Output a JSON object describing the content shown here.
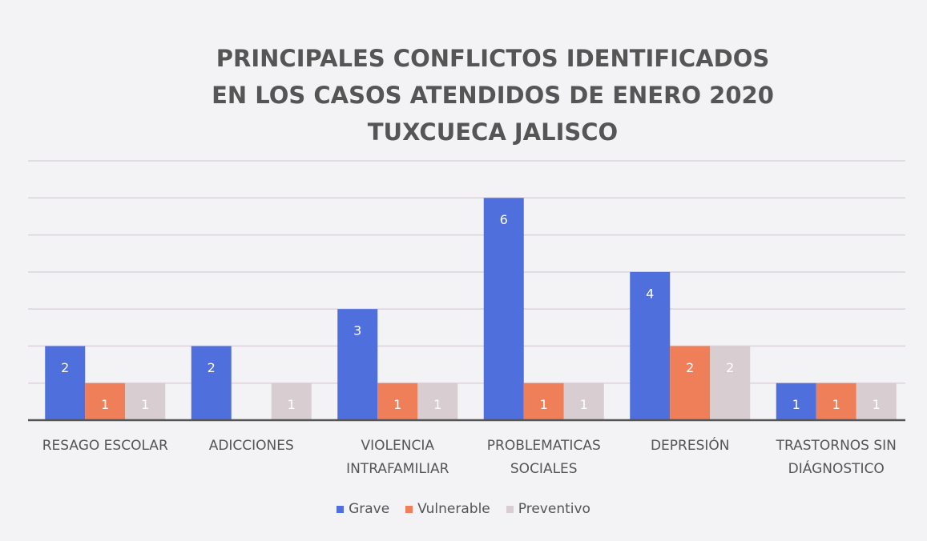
{
  "chart_data": {
    "type": "bar",
    "title": "PRINCIPALES CONFLICTOS IDENTIFICADOS\nEN LOS CASOS ATENDIDOS DE ENERO 2020\nTUXCUECA JALISCO",
    "categories": [
      "RESAGO ESCOLAR",
      "ADICCIONES",
      "VIOLENCIA\nINTRAFAMILIAR",
      "PROBLEMATICAS\nSOCIALES",
      "DEPRESIÓN",
      "TRASTORNOS SIN\nDIÁGNOSTICO"
    ],
    "series": [
      {
        "name": "Grave",
        "color": "#4f6fdc",
        "values": [
          2,
          2,
          3,
          6,
          4,
          1
        ]
      },
      {
        "name": "Vulnerable",
        "color": "#ee7f58",
        "values": [
          1,
          null,
          1,
          1,
          2,
          1
        ]
      },
      {
        "name": "Preventivo",
        "color": "#d8cdd1",
        "values": [
          1,
          1,
          1,
          1,
          2,
          1
        ]
      }
    ],
    "ylim": [
      0,
      7
    ],
    "yticks": [
      0,
      1,
      2,
      3,
      4,
      5,
      6,
      7
    ],
    "show_ytick_labels": false,
    "grid": true
  }
}
